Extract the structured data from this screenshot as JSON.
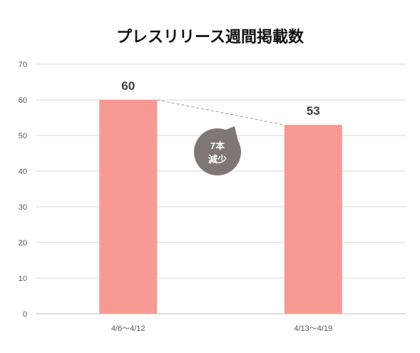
{
  "chart_data": {
    "type": "bar",
    "title": "プレスリリース週間掲載数",
    "categories": [
      "4/6〜4/12",
      "4/13〜4/19"
    ],
    "values": [
      60,
      53
    ],
    "ylim": [
      0,
      70
    ],
    "yticks": [
      0,
      10,
      20,
      30,
      40,
      50,
      60,
      70
    ],
    "grid": true,
    "bar_color": "#f99993",
    "annotation": {
      "line1": "7本",
      "line2": "減少",
      "color": "#7f7774"
    }
  }
}
